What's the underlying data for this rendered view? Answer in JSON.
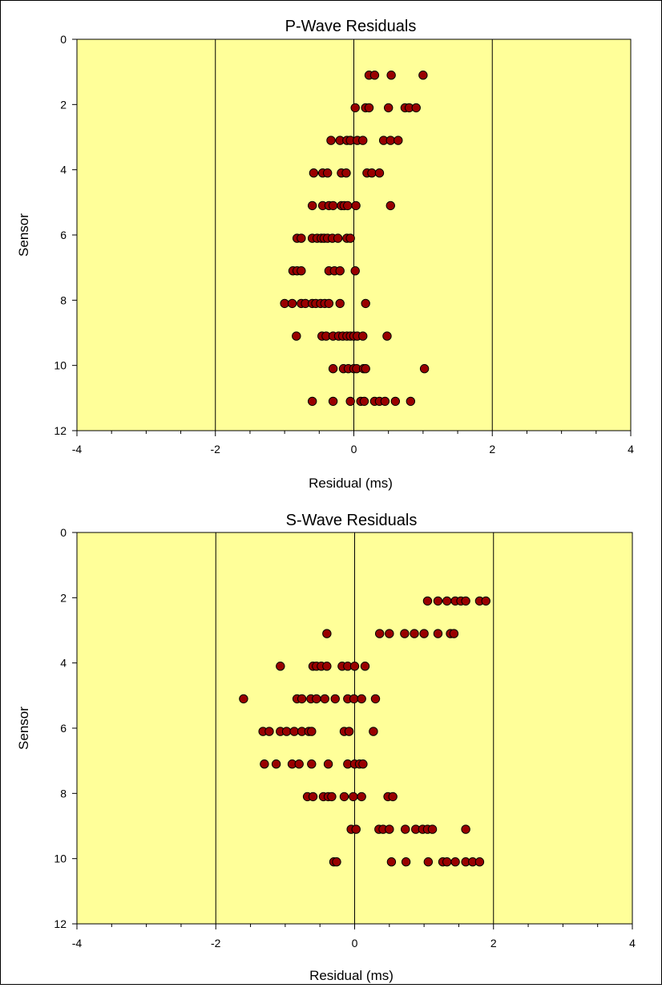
{
  "colors": {
    "plot_bg": "#ffff99",
    "marker_fill": "#990000",
    "marker_edge": "#000000",
    "axis": "#000000"
  },
  "chart_data": [
    {
      "type": "scatter",
      "title": "P-Wave Residuals",
      "xlabel": "Residual (ms)",
      "ylabel": "Sensor",
      "xlim": [
        -4,
        4
      ],
      "ylim": [
        0,
        12
      ],
      "y_inverted": true,
      "xticks": [
        "-4",
        "-2",
        "0",
        "2",
        "4"
      ],
      "yticks": [
        "0",
        "2",
        "4",
        "6",
        "8",
        "10",
        "12"
      ],
      "vertical_gridlines_at": [
        -2,
        0,
        2
      ],
      "points": [
        {
          "sensor": 1.1,
          "x": [
            0.22,
            0.3,
            0.54,
            1.0
          ]
        },
        {
          "sensor": 2.1,
          "x": [
            0.02,
            0.17,
            0.22,
            0.5,
            0.74,
            0.8,
            0.9
          ]
        },
        {
          "sensor": 3.1,
          "x": [
            -0.33,
            -0.2,
            -0.1,
            -0.05,
            0.05,
            0.13,
            0.43,
            0.53,
            0.64
          ]
        },
        {
          "sensor": 4.1,
          "x": [
            -0.58,
            -0.45,
            -0.38,
            -0.18,
            -0.11,
            0.19,
            0.26,
            0.37
          ]
        },
        {
          "sensor": 5.1,
          "x": [
            -0.6,
            -0.45,
            -0.36,
            -0.3,
            -0.18,
            -0.14,
            -0.09,
            0.03,
            0.53
          ]
        },
        {
          "sensor": 6.1,
          "x": [
            -0.82,
            -0.76,
            -0.6,
            -0.53,
            -0.47,
            -0.43,
            -0.38,
            -0.31,
            -0.23,
            -0.1,
            -0.05
          ]
        },
        {
          "sensor": 7.1,
          "x": [
            -0.88,
            -0.82,
            -0.76,
            -0.36,
            -0.28,
            -0.2,
            0.02
          ]
        },
        {
          "sensor": 8.1,
          "x": [
            -1.0,
            -0.89,
            -0.76,
            -0.7,
            -0.6,
            -0.55,
            -0.48,
            -0.42,
            -0.36,
            -0.2,
            0.17
          ]
        },
        {
          "sensor": 9.1,
          "x": [
            -0.83,
            -0.46,
            -0.4,
            -0.3,
            -0.22,
            -0.16,
            -0.1,
            -0.05,
            0.0,
            0.05,
            0.13,
            0.48
          ]
        },
        {
          "sensor": 10.1,
          "x": [
            -0.3,
            -0.15,
            -0.08,
            0.0,
            0.04,
            0.14,
            0.17,
            1.02
          ]
        },
        {
          "sensor": 11.1,
          "x": [
            -0.6,
            -0.3,
            -0.05,
            0.1,
            0.15,
            0.3,
            0.37,
            0.45,
            0.6,
            0.82
          ]
        }
      ]
    },
    {
      "type": "scatter",
      "title": "S-Wave Residuals",
      "xlabel": "Residual (ms)",
      "ylabel": "Sensor",
      "xlim": [
        -4,
        4
      ],
      "ylim": [
        0,
        12
      ],
      "y_inverted": true,
      "xticks": [
        "-4",
        "-2",
        "0",
        "2",
        "4"
      ],
      "yticks": [
        "0",
        "2",
        "4",
        "6",
        "8",
        "10",
        "12"
      ],
      "vertical_gridlines_at": [
        -2,
        0,
        2
      ],
      "points": [
        {
          "sensor": 2.1,
          "x": [
            1.05,
            1.2,
            1.33,
            1.45,
            1.53,
            1.6,
            1.8,
            1.89
          ]
        },
        {
          "sensor": 3.1,
          "x": [
            -0.4,
            0.36,
            0.5,
            0.72,
            0.86,
            1.0,
            1.2,
            1.38,
            1.43
          ]
        },
        {
          "sensor": 4.1,
          "x": [
            -1.07,
            -0.6,
            -0.55,
            -0.48,
            -0.4,
            -0.18,
            -0.1,
            0.0,
            0.15
          ]
        },
        {
          "sensor": 5.1,
          "x": [
            -1.6,
            -0.83,
            -0.76,
            -0.63,
            -0.55,
            -0.43,
            -0.28,
            -0.1,
            -0.01,
            0.1,
            0.3
          ]
        },
        {
          "sensor": 6.1,
          "x": [
            -1.32,
            -1.23,
            -1.07,
            -0.98,
            -0.87,
            -0.76,
            -0.66,
            -0.62,
            -0.15,
            -0.08,
            0.27
          ]
        },
        {
          "sensor": 7.1,
          "x": [
            -1.3,
            -1.13,
            -0.9,
            -0.8,
            -0.62,
            -0.38,
            -0.1,
            0.0,
            0.07,
            0.12
          ]
        },
        {
          "sensor": 8.1,
          "x": [
            -0.68,
            -0.6,
            -0.45,
            -0.38,
            -0.33,
            -0.15,
            -0.02,
            0.1,
            0.48,
            0.55
          ]
        },
        {
          "sensor": 9.1,
          "x": [
            -0.05,
            0.02,
            0.35,
            0.41,
            0.5,
            0.73,
            0.88,
            0.98,
            1.05,
            1.12,
            1.6
          ]
        },
        {
          "sensor": 10.1,
          "x": [
            -0.3,
            -0.26,
            0.53,
            0.74,
            1.06,
            1.27,
            1.33,
            1.45,
            1.6,
            1.7,
            1.8
          ]
        }
      ]
    }
  ]
}
